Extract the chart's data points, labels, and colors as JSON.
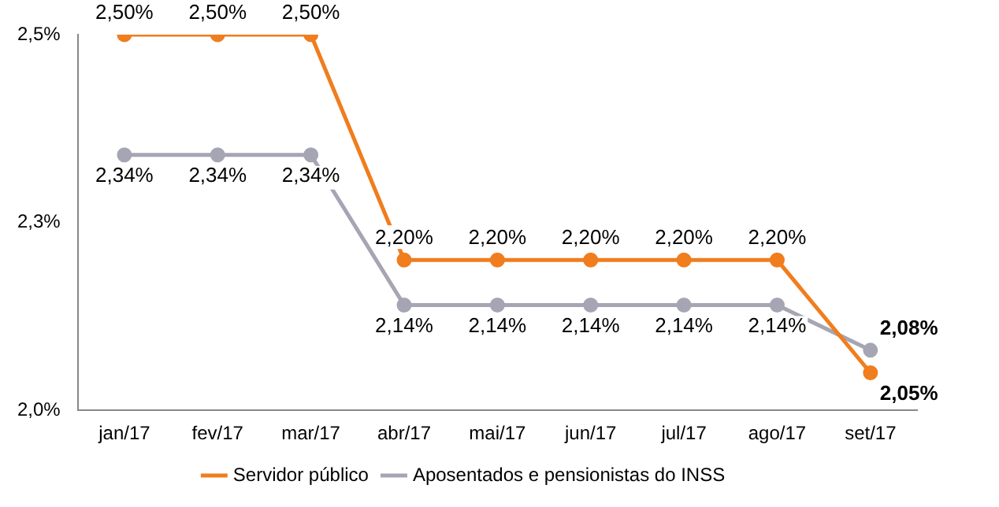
{
  "chart_data": {
    "type": "line",
    "categories": [
      "jan/17",
      "fev/17",
      "mar/17",
      "abr/17",
      "mai/17",
      "jun/17",
      "jul/17",
      "ago/17",
      "set/17"
    ],
    "series": [
      {
        "name": "Servidor público",
        "color": "#f07d1e",
        "values": [
          2.5,
          2.5,
          2.5,
          2.2,
          2.2,
          2.2,
          2.2,
          2.2,
          2.05
        ],
        "value_labels": [
          "2,50%",
          "2,50%",
          "2,50%",
          "2,20%",
          "2,20%",
          "2,20%",
          "2,20%",
          "2,20%",
          "2,05%"
        ]
      },
      {
        "name": "Aposentados e pensionistas do INSS",
        "color": "#a5a5b4",
        "values": [
          2.34,
          2.34,
          2.34,
          2.14,
          2.14,
          2.14,
          2.14,
          2.14,
          2.08
        ],
        "value_labels": [
          "2,34%",
          "2,34%",
          "2,34%",
          "2,14%",
          "2,14%",
          "2,14%",
          "2,14%",
          "2,14%",
          "2,08%"
        ]
      }
    ],
    "ylim": [
      2.0,
      2.5
    ],
    "yticks": [
      {
        "value": 2.0,
        "label": "2,0%"
      },
      {
        "value": 2.25,
        "label": "2,3%"
      },
      {
        "value": 2.5,
        "label": "2,5%"
      }
    ],
    "marker": "circle",
    "line_style": "solid",
    "legend": "bottom"
  }
}
